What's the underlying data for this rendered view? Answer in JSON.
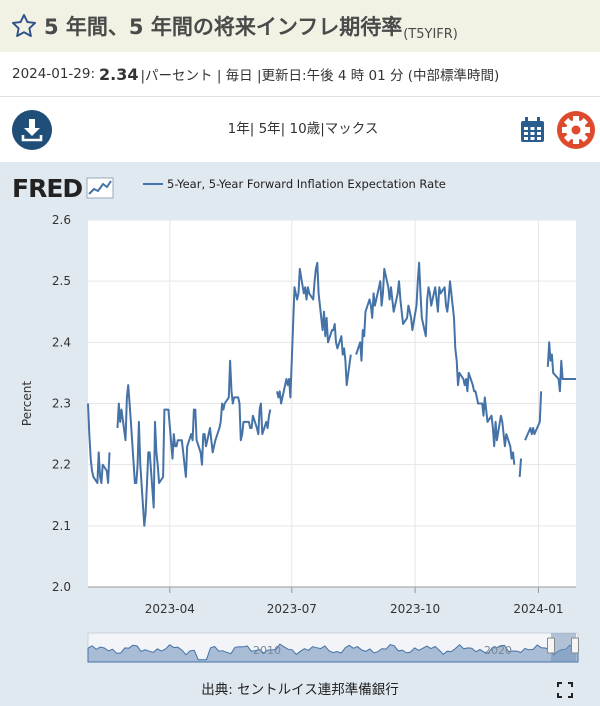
{
  "header": {
    "title": "5 年間、5 年間の将来インフレ期待率",
    "series_id": "(T5YIFR)"
  },
  "info": {
    "date": "2024-01-29:",
    "value": "2.34",
    "unit": "|パーセント | 毎日 |更新日:午後 4 時 01 分 (中部標準時間)"
  },
  "toolbar": {
    "ranges": "1年| 5年| 10歳|マックス"
  },
  "legend": {
    "label": "5-Year, 5-Year Forward Inflation Expectation Rate"
  },
  "logo": {
    "text": "FRED"
  },
  "source": "出典: セントルイス連邦準備銀行",
  "navigator": {
    "labels": [
      "2010",
      "2020"
    ]
  },
  "colors": {
    "line": "#4572a7",
    "accent": "#1f4e79",
    "gear": "#dd4b2c",
    "chart_bg": "#e1e9f0"
  },
  "icons": [
    "star-icon",
    "download-icon",
    "calendar-icon",
    "gear-icon",
    "fullscreen-icon",
    "fred-sparkline-icon"
  ],
  "chart_data": {
    "type": "line",
    "title": "",
    "ylabel": "Percent",
    "xlabel": "",
    "ylim": [
      2.0,
      2.6
    ],
    "yticks": [
      2.0,
      2.1,
      2.2,
      2.3,
      2.4,
      2.5,
      2.6
    ],
    "ytick_labels": [
      "2.0",
      "2.1",
      "2.2",
      "2.3",
      "2.4",
      "2.5",
      "2.6"
    ],
    "xlim": [
      "2023-01-30",
      "2024-01-29"
    ],
    "xticks": [
      "2023-04-01",
      "2023-07-01",
      "2023-10-01",
      "2024-01-01"
    ],
    "xtick_labels": [
      "2023-04",
      "2023-07",
      "2023-10",
      "2024-01"
    ],
    "grid": true,
    "legend_position": "top",
    "series": [
      {
        "name": "5-Year, 5-Year Forward Inflation Expectation Rate",
        "color": "#4572a7",
        "points": [
          [
            "2023-01-30",
            2.3
          ],
          [
            "2023-01-31",
            2.25
          ],
          [
            "2023-02-01",
            2.21
          ],
          [
            "2023-02-02",
            2.19
          ],
          [
            "2023-02-03",
            2.18
          ],
          [
            "2023-02-06",
            2.17
          ],
          [
            "2023-02-07",
            2.22
          ],
          [
            "2023-02-08",
            2.18
          ],
          [
            "2023-02-09",
            2.17
          ],
          [
            "2023-02-10",
            2.2
          ],
          [
            "2023-02-13",
            2.19
          ],
          [
            "2023-02-14",
            2.17
          ],
          [
            "2023-02-15",
            2.22
          ],
          null,
          [
            "2023-02-21",
            2.26
          ],
          [
            "2023-02-22",
            2.3
          ],
          [
            "2023-02-23",
            2.27
          ],
          [
            "2023-02-24",
            2.29
          ],
          [
            "2023-02-27",
            2.24
          ],
          [
            "2023-02-28",
            2.31
          ],
          [
            "2023-03-01",
            2.33
          ],
          [
            "2023-03-02",
            2.3
          ],
          [
            "2023-03-03",
            2.27
          ],
          [
            "2023-03-06",
            2.17
          ],
          [
            "2023-03-07",
            2.17
          ],
          [
            "2023-03-08",
            2.2
          ],
          [
            "2023-03-09",
            2.27
          ],
          [
            "2023-03-10",
            2.2
          ],
          [
            "2023-03-13",
            2.1
          ],
          [
            "2023-03-14",
            2.12
          ],
          [
            "2023-03-15",
            2.17
          ],
          [
            "2023-03-16",
            2.22
          ],
          [
            "2023-03-17",
            2.22
          ],
          [
            "2023-03-20",
            2.13
          ],
          [
            "2023-03-21",
            2.27
          ],
          [
            "2023-03-22",
            2.22
          ],
          [
            "2023-03-23",
            2.2
          ],
          [
            "2023-03-24",
            2.17
          ],
          [
            "2023-03-27",
            2.18
          ],
          [
            "2023-03-28",
            2.29
          ],
          [
            "2023-03-29",
            2.29
          ],
          [
            "2023-03-30",
            2.29
          ],
          [
            "2023-03-31",
            2.29
          ],
          [
            "2023-04-03",
            2.21
          ],
          [
            "2023-04-04",
            2.25
          ],
          [
            "2023-04-05",
            2.23
          ],
          [
            "2023-04-06",
            2.23
          ],
          [
            "2023-04-07",
            2.24
          ],
          [
            "2023-04-10",
            2.24
          ],
          [
            "2023-04-11",
            2.22
          ],
          [
            "2023-04-12",
            2.2
          ],
          [
            "2023-04-13",
            2.18
          ],
          [
            "2023-04-14",
            2.23
          ],
          [
            "2023-04-17",
            2.25
          ],
          [
            "2023-04-18",
            2.24
          ],
          [
            "2023-04-19",
            2.29
          ],
          [
            "2023-04-20",
            2.29
          ],
          [
            "2023-04-21",
            2.24
          ],
          [
            "2023-04-24",
            2.22
          ],
          [
            "2023-04-25",
            2.2
          ],
          [
            "2023-04-26",
            2.25
          ],
          [
            "2023-04-27",
            2.25
          ],
          [
            "2023-04-28",
            2.23
          ],
          [
            "2023-05-01",
            2.26
          ],
          [
            "2023-05-02",
            2.24
          ],
          [
            "2023-05-03",
            2.22
          ],
          [
            "2023-05-04",
            2.23
          ],
          [
            "2023-05-05",
            2.24
          ],
          [
            "2023-05-08",
            2.26
          ],
          [
            "2023-05-09",
            2.27
          ],
          [
            "2023-05-10",
            2.3
          ],
          [
            "2023-05-11",
            2.29
          ],
          [
            "2023-05-12",
            2.3
          ],
          [
            "2023-05-15",
            2.31
          ],
          [
            "2023-05-16",
            2.37
          ],
          [
            "2023-05-17",
            2.32
          ],
          [
            "2023-05-18",
            2.3
          ],
          [
            "2023-05-19",
            2.31
          ],
          [
            "2023-05-22",
            2.31
          ],
          [
            "2023-05-23",
            2.3
          ],
          [
            "2023-05-24",
            2.24
          ],
          [
            "2023-05-25",
            2.25
          ],
          [
            "2023-05-26",
            2.27
          ],
          [
            "2023-05-30",
            2.27
          ],
          [
            "2023-05-31",
            2.26
          ],
          [
            "2023-06-01",
            2.26
          ],
          [
            "2023-06-02",
            2.28
          ],
          [
            "2023-06-05",
            2.26
          ],
          [
            "2023-06-06",
            2.25
          ],
          [
            "2023-06-07",
            2.29
          ],
          [
            "2023-06-08",
            2.3
          ],
          [
            "2023-06-09",
            2.25
          ],
          [
            "2023-06-12",
            2.27
          ],
          [
            "2023-06-13",
            2.26
          ],
          [
            "2023-06-14",
            2.28
          ],
          [
            "2023-06-15",
            2.29
          ],
          null,
          [
            "2023-06-20",
            2.32
          ],
          [
            "2023-06-21",
            2.31
          ],
          [
            "2023-06-22",
            2.32
          ],
          [
            "2023-06-23",
            2.3
          ],
          [
            "2023-06-26",
            2.33
          ],
          [
            "2023-06-27",
            2.34
          ],
          [
            "2023-06-28",
            2.33
          ],
          [
            "2023-06-29",
            2.34
          ],
          [
            "2023-06-30",
            2.31
          ],
          [
            "2023-07-03",
            2.49
          ],
          [
            "2023-07-05",
            2.47
          ],
          [
            "2023-07-06",
            2.48
          ],
          [
            "2023-07-07",
            2.52
          ],
          [
            "2023-07-10",
            2.48
          ],
          [
            "2023-07-11",
            2.49
          ],
          [
            "2023-07-12",
            2.47
          ],
          [
            "2023-07-13",
            2.49
          ],
          [
            "2023-07-14",
            2.48
          ],
          [
            "2023-07-17",
            2.47
          ],
          [
            "2023-07-18",
            2.5
          ],
          [
            "2023-07-19",
            2.52
          ],
          [
            "2023-07-20",
            2.53
          ],
          [
            "2023-07-21",
            2.48
          ],
          [
            "2023-07-24",
            2.42
          ],
          [
            "2023-07-25",
            2.45
          ],
          [
            "2023-07-26",
            2.41
          ],
          [
            "2023-07-27",
            2.44
          ],
          [
            "2023-07-28",
            2.4
          ],
          [
            "2023-07-31",
            2.42
          ],
          [
            "2023-08-01",
            2.42
          ],
          [
            "2023-08-02",
            2.43
          ],
          [
            "2023-08-03",
            2.4
          ],
          [
            "2023-08-04",
            2.39
          ],
          [
            "2023-08-07",
            2.41
          ],
          [
            "2023-08-08",
            2.38
          ],
          [
            "2023-08-09",
            2.39
          ],
          [
            "2023-08-10",
            2.37
          ],
          [
            "2023-08-11",
            2.33
          ],
          [
            "2023-08-14",
            2.38
          ],
          null,
          [
            "2023-08-18",
            2.38
          ],
          [
            "2023-08-21",
            2.4
          ],
          [
            "2023-08-22",
            2.37
          ],
          [
            "2023-08-23",
            2.42
          ],
          [
            "2023-08-24",
            2.41
          ],
          [
            "2023-08-25",
            2.45
          ],
          [
            "2023-08-28",
            2.47
          ],
          [
            "2023-08-29",
            2.46
          ],
          [
            "2023-08-30",
            2.44
          ],
          [
            "2023-08-31",
            2.48
          ],
          [
            "2023-09-01",
            2.46
          ],
          [
            "2023-09-05",
            2.5
          ],
          [
            "2023-09-06",
            2.46
          ],
          [
            "2023-09-07",
            2.48
          ],
          [
            "2023-09-08",
            2.52
          ],
          [
            "2023-09-11",
            2.49
          ],
          [
            "2023-09-12",
            2.47
          ],
          [
            "2023-09-13",
            2.49
          ],
          [
            "2023-09-14",
            2.47
          ],
          [
            "2023-09-15",
            2.45
          ],
          [
            "2023-09-18",
            2.48
          ],
          [
            "2023-09-19",
            2.5
          ],
          [
            "2023-09-20",
            2.47
          ],
          [
            "2023-09-21",
            2.45
          ],
          [
            "2023-09-22",
            2.43
          ],
          [
            "2023-09-25",
            2.44
          ],
          [
            "2023-09-26",
            2.46
          ],
          [
            "2023-09-27",
            2.45
          ],
          [
            "2023-09-28",
            2.44
          ],
          [
            "2023-09-29",
            2.42
          ],
          [
            "2023-10-02",
            2.46
          ],
          [
            "2023-10-03",
            2.5
          ],
          [
            "2023-10-04",
            2.53
          ],
          [
            "2023-10-05",
            2.48
          ],
          [
            "2023-10-06",
            2.44
          ],
          [
            "2023-10-09",
            2.41
          ],
          [
            "2023-10-10",
            2.47
          ],
          [
            "2023-10-11",
            2.49
          ],
          [
            "2023-10-12",
            2.48
          ],
          [
            "2023-10-13",
            2.46
          ],
          [
            "2023-10-16",
            2.49
          ],
          [
            "2023-10-17",
            2.47
          ],
          [
            "2023-10-18",
            2.45
          ],
          [
            "2023-10-19",
            2.49
          ],
          [
            "2023-10-20",
            2.48
          ],
          [
            "2023-10-23",
            2.49
          ],
          [
            "2023-10-24",
            2.46
          ],
          [
            "2023-10-25",
            2.45
          ],
          [
            "2023-10-26",
            2.47
          ],
          [
            "2023-10-27",
            2.5
          ],
          [
            "2023-10-30",
            2.44
          ],
          [
            "2023-10-31",
            2.39
          ],
          [
            "2023-11-01",
            2.37
          ],
          [
            "2023-11-02",
            2.33
          ],
          [
            "2023-11-03",
            2.35
          ],
          [
            "2023-11-06",
            2.34
          ],
          [
            "2023-11-07",
            2.33
          ],
          [
            "2023-11-08",
            2.34
          ],
          [
            "2023-11-09",
            2.32
          ],
          [
            "2023-11-10",
            2.35
          ],
          [
            "2023-11-13",
            2.33
          ],
          [
            "2023-11-14",
            2.32
          ],
          [
            "2023-11-15",
            2.32
          ],
          [
            "2023-11-16",
            2.31
          ],
          [
            "2023-11-17",
            2.3
          ],
          [
            "2023-11-20",
            2.3
          ],
          [
            "2023-11-21",
            2.28
          ],
          [
            "2023-11-22",
            2.31
          ],
          [
            "2023-11-24",
            2.27
          ],
          [
            "2023-11-27",
            2.28
          ],
          [
            "2023-11-28",
            2.26
          ],
          [
            "2023-11-29",
            2.23
          ],
          [
            "2023-11-30",
            2.27
          ],
          [
            "2023-12-01",
            2.24
          ],
          [
            "2023-12-04",
            2.28
          ],
          [
            "2023-12-05",
            2.27
          ],
          [
            "2023-12-06",
            2.25
          ],
          [
            "2023-12-07",
            2.23
          ],
          [
            "2023-12-08",
            2.25
          ],
          [
            "2023-12-11",
            2.23
          ],
          [
            "2023-12-12",
            2.21
          ],
          [
            "2023-12-13",
            2.22
          ],
          [
            "2023-12-14",
            2.2
          ],
          null,
          [
            "2023-12-18",
            2.18
          ],
          [
            "2023-12-19",
            2.21
          ],
          null,
          [
            "2023-12-22",
            2.24
          ],
          [
            "2023-12-26",
            2.26
          ],
          [
            "2023-12-27",
            2.25
          ],
          [
            "2023-12-28",
            2.26
          ],
          [
            "2023-12-29",
            2.25
          ],
          [
            "2024-01-02",
            2.27
          ],
          [
            "2024-01-03",
            2.32
          ],
          null,
          [
            "2024-01-08",
            2.36
          ],
          [
            "2024-01-09",
            2.4
          ],
          [
            "2024-01-10",
            2.37
          ],
          [
            "2024-01-11",
            2.38
          ],
          [
            "2024-01-12",
            2.35
          ],
          [
            "2024-01-16",
            2.34
          ],
          [
            "2024-01-17",
            2.32
          ],
          [
            "2024-01-18",
            2.37
          ],
          [
            "2024-01-19",
            2.34
          ],
          [
            "2024-01-22",
            2.34
          ],
          [
            "2024-01-23",
            2.34
          ],
          [
            "2024-01-24",
            2.34
          ],
          [
            "2024-01-25",
            2.34
          ],
          [
            "2024-01-26",
            2.34
          ],
          [
            "2024-01-29",
            2.34
          ]
        ]
      }
    ]
  }
}
